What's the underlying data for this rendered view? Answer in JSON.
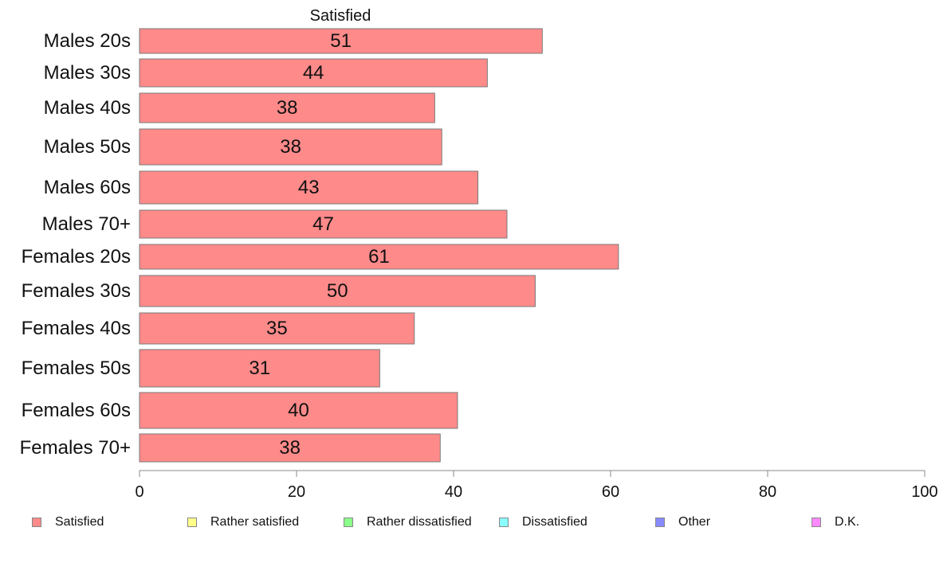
{
  "chart_data": {
    "type": "bar",
    "orientation": "horizontal",
    "title": "Satisfied",
    "categories": [
      "Males 20s",
      "Males 30s",
      "Males 40s",
      "Males 50s",
      "Males 60s",
      "Males 70+",
      "Females 20s",
      "Females 30s",
      "Females 40s",
      "Females 50s",
      "Females 60s",
      "Females 70+"
    ],
    "series": [
      {
        "name": "Satisfied",
        "color": "#ff8a8a",
        "values": [
          51.3,
          44.3,
          37.6,
          38.5,
          43.1,
          46.8,
          61.0,
          50.4,
          35.0,
          30.6,
          40.5,
          38.3
        ],
        "labels": [
          "51",
          "44",
          "38",
          "38",
          "43",
          "47",
          "61",
          "50",
          "35",
          "31",
          "40",
          "38"
        ]
      }
    ],
    "xlim": [
      0,
      100
    ],
    "xticks": [
      "0",
      "20",
      "40",
      "60",
      "80",
      "100"
    ],
    "grid": false,
    "legend_position": "bottom"
  },
  "legend": [
    {
      "label": "Satisfied",
      "color": "#ff8a8a"
    },
    {
      "label": "Rather satisfied",
      "color": "#ffff8a"
    },
    {
      "label": "Rather dissatisfied",
      "color": "#8aff8a"
    },
    {
      "label": "Dissatisfied",
      "color": "#8affff"
    },
    {
      "label": "Other",
      "color": "#8a8aff"
    },
    {
      "label": "D.K.",
      "color": "#ff8aff"
    }
  ]
}
